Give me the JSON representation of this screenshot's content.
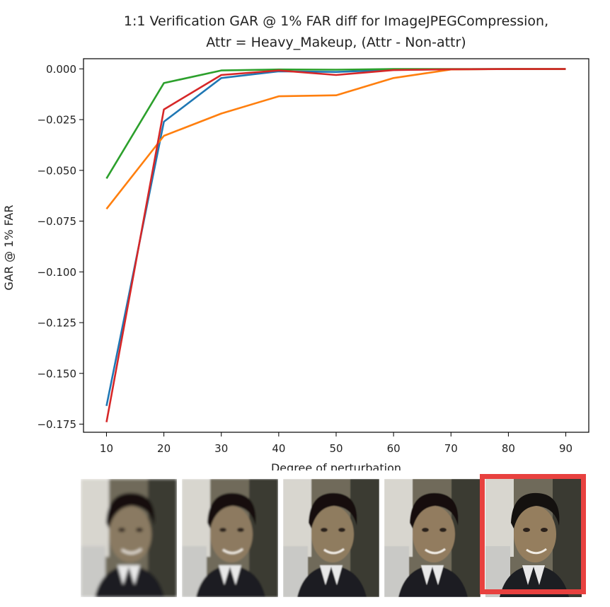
{
  "chart_data": {
    "type": "line",
    "title": "1:1 Verification GAR @ 1% FAR diff for ImageJPEGCompression,\nAttr = Heavy_Makeup, (Attr - Non-attr)",
    "xlabel": "Degree of perturbation",
    "ylabel": "GAR @ 1% FAR",
    "x": [
      10,
      20,
      30,
      40,
      50,
      60,
      70,
      80,
      90
    ],
    "xlim": [
      6,
      94
    ],
    "ylim": [
      -0.179,
      0.005
    ],
    "xticks": [
      "10",
      "20",
      "30",
      "40",
      "50",
      "60",
      "70",
      "80",
      "90"
    ],
    "yticks": [
      {
        "value": 0.0,
        "label": "0.000"
      },
      {
        "value": -0.025,
        "label": "−0.025"
      },
      {
        "value": -0.05,
        "label": "−0.050"
      },
      {
        "value": -0.075,
        "label": "−0.075"
      },
      {
        "value": -0.1,
        "label": "−0.100"
      },
      {
        "value": -0.125,
        "label": "−0.125"
      },
      {
        "value": -0.15,
        "label": "−0.150"
      },
      {
        "value": -0.175,
        "label": "−0.175"
      }
    ],
    "grid": false,
    "legend": "none",
    "series": [
      {
        "color": "#1f77b4",
        "values": [
          -0.166,
          -0.026,
          -0.0045,
          -0.0012,
          -0.0015,
          -0.0005,
          -0.0002,
          -0.0001,
          -0.0001
        ]
      },
      {
        "color": "#ff7f0e",
        "values": [
          -0.069,
          -0.033,
          -0.022,
          -0.0135,
          -0.013,
          -0.0045,
          -0.0003,
          -0.0001,
          -0.0001
        ]
      },
      {
        "color": "#2ca02c",
        "values": [
          -0.054,
          -0.007,
          -0.0008,
          -0.0003,
          -0.0004,
          -0.0001,
          -0.0001,
          -0.0001,
          -0.0001
        ]
      },
      {
        "color": "#d62728",
        "values": [
          -0.174,
          -0.02,
          -0.003,
          -0.0008,
          -0.003,
          -0.0006,
          -0.0002,
          -0.0001,
          -0.0001
        ]
      }
    ]
  },
  "thumbnails": {
    "count": 5,
    "selected_index": 4,
    "highlight_color": "#e8413f"
  }
}
